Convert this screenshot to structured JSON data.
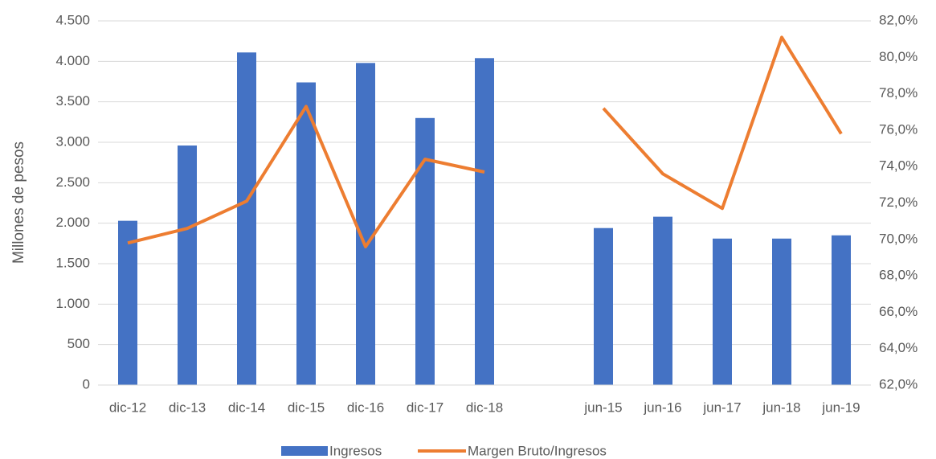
{
  "chart_data": {
    "type": "bar_line",
    "y_label": "Millones de pesos",
    "categories": [
      "dic-12",
      "dic-13",
      "dic-14",
      "dic-15",
      "dic-16",
      "dic-17",
      "dic-18",
      null,
      "jun-15",
      "jun-16",
      "jun-17",
      "jun-18",
      "jun-19"
    ],
    "series": [
      {
        "name": "Ingresos",
        "type": "bar",
        "color": "#4472c4",
        "values": [
          2030,
          2960,
          4110,
          3740,
          3980,
          3300,
          4040,
          null,
          1940,
          2080,
          1810,
          1810,
          1850
        ]
      },
      {
        "name": "Margen Bruto/Ingresos",
        "type": "line",
        "axis": "y2",
        "color": "#ed7d31",
        "values": [
          69.8,
          70.6,
          72.1,
          77.3,
          69.6,
          74.4,
          73.7,
          null,
          77.2,
          73.6,
          71.7,
          81.1,
          75.8
        ]
      }
    ],
    "ylim": [
      0,
      4500
    ],
    "yticks": [
      0,
      500,
      {
        "value": 1000,
        "label": "1.000"
      },
      {
        "value": 1500,
        "label": "1.500"
      },
      {
        "value": 2000,
        "label": "2.000"
      },
      {
        "value": 2500,
        "label": "2.500"
      },
      {
        "value": 3000,
        "label": "3.000"
      },
      {
        "value": 3500,
        "label": "3.500"
      },
      {
        "value": 4000,
        "label": "4.000"
      },
      {
        "value": 4500,
        "label": "4.500"
      }
    ],
    "y2lim": [
      62,
      82
    ],
    "y2ticks": [
      {
        "value": 62,
        "label": "62,0%"
      },
      {
        "value": 64,
        "label": "64,0%"
      },
      {
        "value": 66,
        "label": "66,0%"
      },
      {
        "value": 68,
        "label": "68,0%"
      },
      {
        "value": 70,
        "label": "70,0%"
      },
      {
        "value": 72,
        "label": "72,0%"
      },
      {
        "value": 74,
        "label": "74,0%"
      },
      {
        "value": 76,
        "label": "76,0%"
      },
      {
        "value": 78,
        "label": "78,0%"
      },
      {
        "value": 80,
        "label": "80,0%"
      },
      {
        "value": 82,
        "label": "82,0%"
      }
    ],
    "grid": true,
    "legend": "bottom"
  }
}
